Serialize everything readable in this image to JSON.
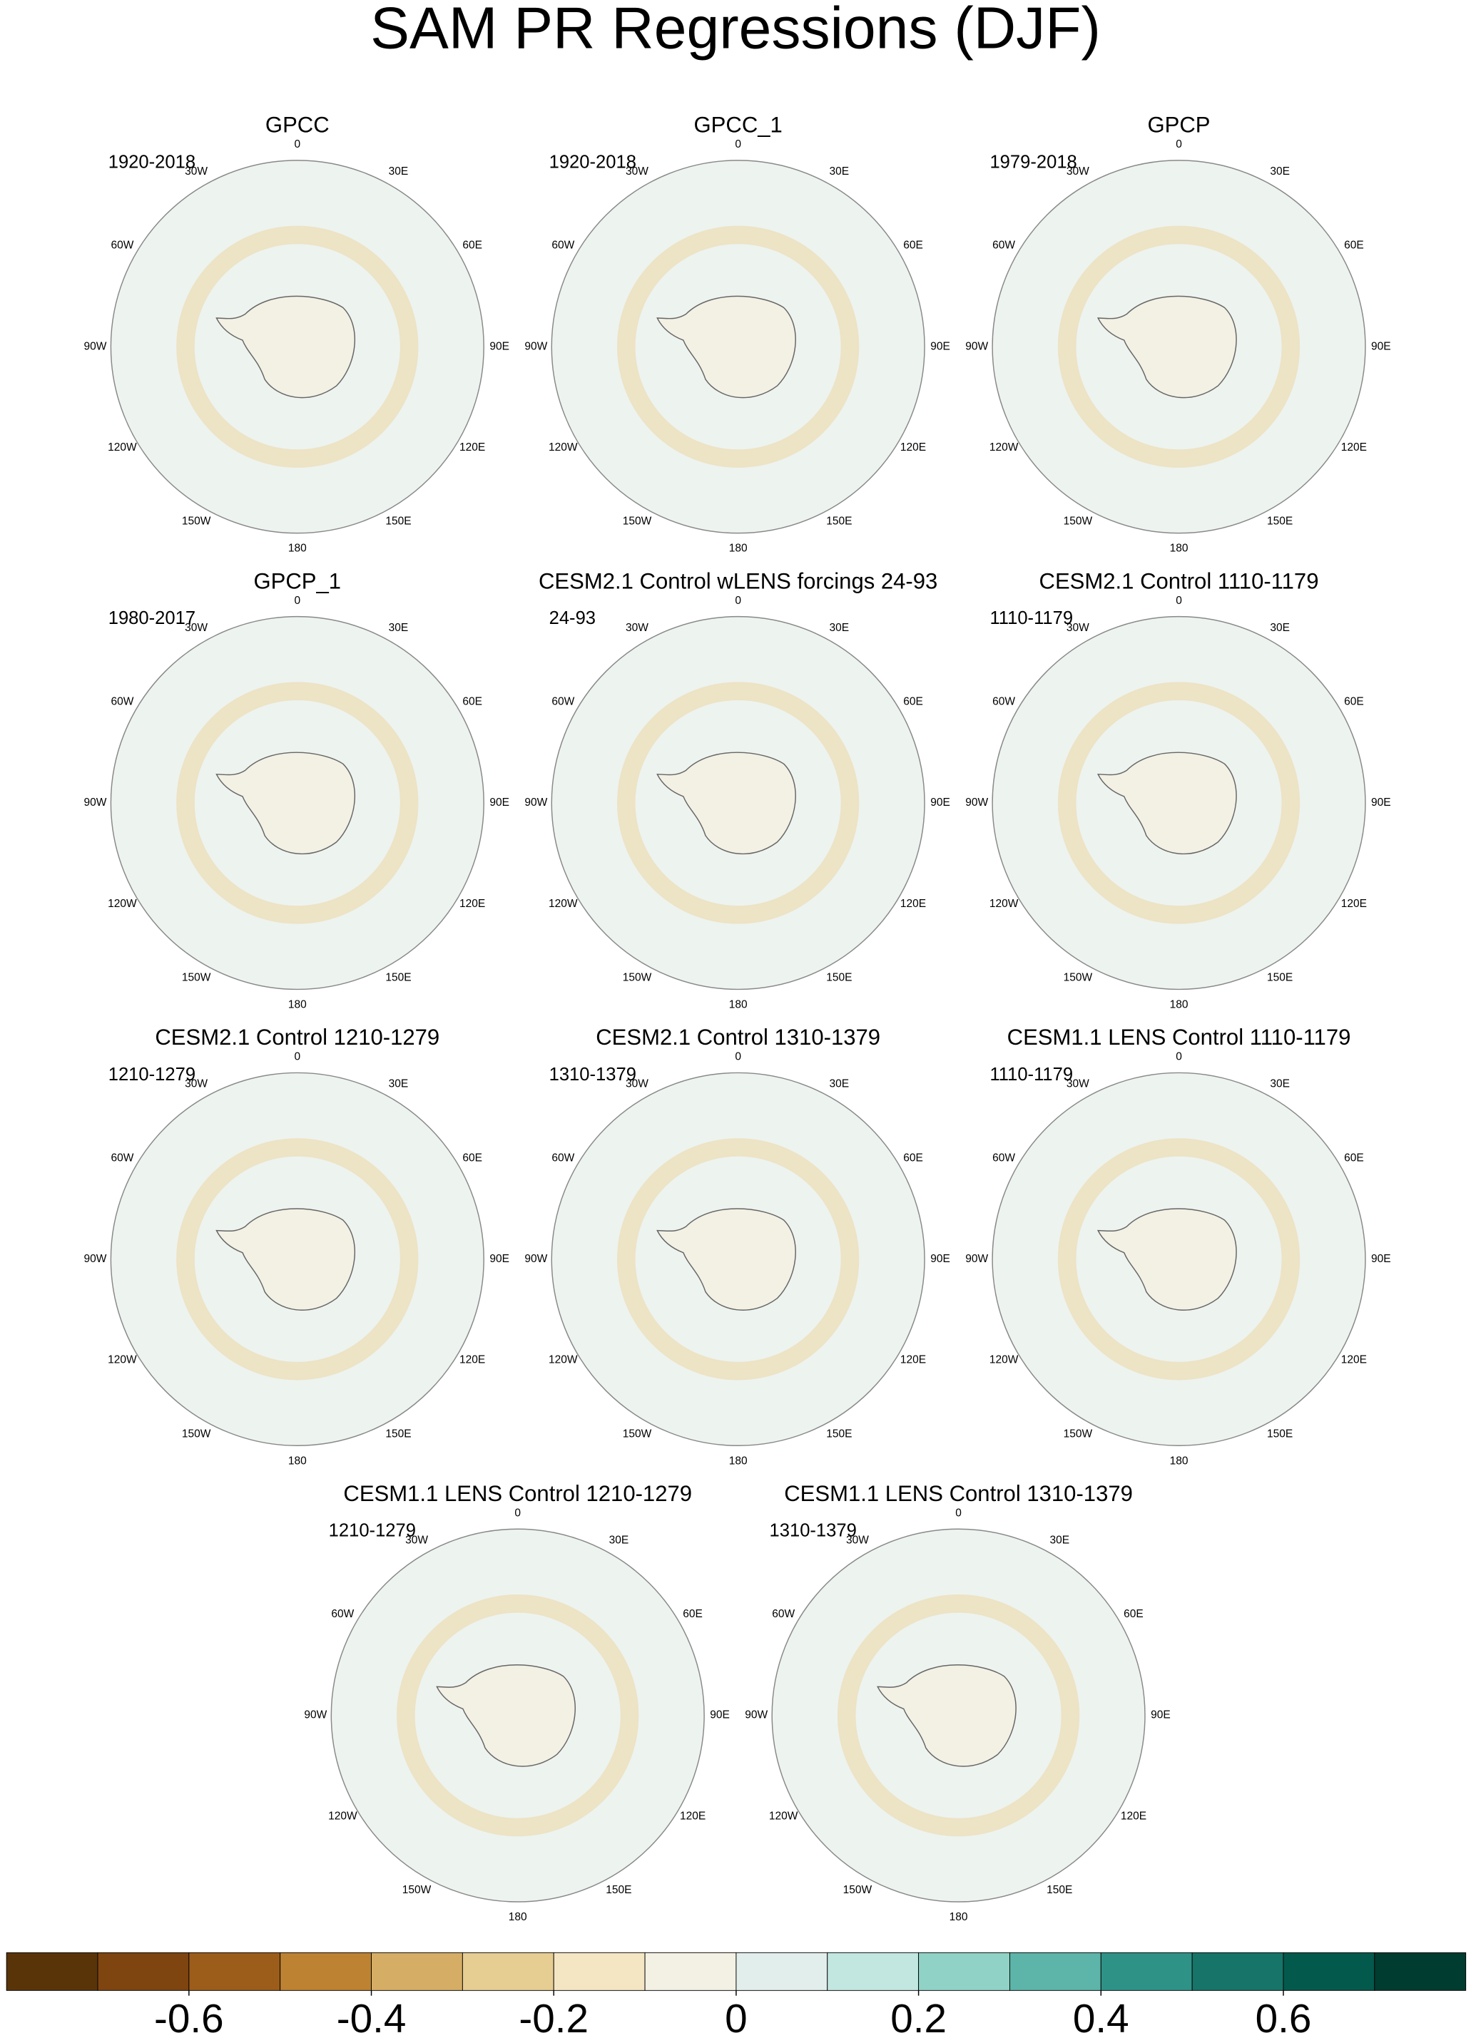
{
  "title": "SAM PR Regressions (DJF)",
  "panels": [
    {
      "title": "GPCC",
      "period": "1920-2018"
    },
    {
      "title": "GPCC_1",
      "period": "1920-2018"
    },
    {
      "title": "GPCP",
      "period": "1979-2018"
    },
    {
      "title": "GPCP_1",
      "period": "1980-2017"
    },
    {
      "title": "CESM2.1 Control wLENS forcings 24-93",
      "period": "24-93"
    },
    {
      "title": "CESM2.1 Control 1110-1179",
      "period": "1110-1179"
    },
    {
      "title": "CESM2.1 Control 1210-1279",
      "period": "1210-1279"
    },
    {
      "title": "CESM2.1 Control 1310-1379",
      "period": "1310-1379"
    },
    {
      "title": "CESM1.1 LENS Control 1110-1179",
      "period": "1110-1179"
    },
    {
      "title": "CESM1.1 LENS Control 1210-1279",
      "period": "1210-1279"
    },
    {
      "title": "CESM1.1 LENS Control 1310-1379",
      "period": "1310-1379"
    }
  ],
  "lon_labels": [
    "0",
    "30E",
    "60E",
    "90E",
    "120E",
    "150E",
    "180",
    "150W",
    "120W",
    "90W",
    "60W",
    "30W"
  ],
  "colorbar": {
    "lim": [
      -0.8,
      0.8
    ],
    "colors": [
      "#5a3409",
      "#7e4510",
      "#9c5d1a",
      "#bd8232",
      "#d5ad65",
      "#e6cd92",
      "#f4e6c3",
      "#f3f0e4",
      "#e2eeec",
      "#c2e6e0",
      "#90d2c6",
      "#5db4a8",
      "#2f9287",
      "#177468",
      "#03594c",
      "#003c30"
    ],
    "ticks": [
      -0.6,
      -0.4,
      -0.2,
      0,
      0.2,
      0.4,
      0.6
    ]
  }
}
